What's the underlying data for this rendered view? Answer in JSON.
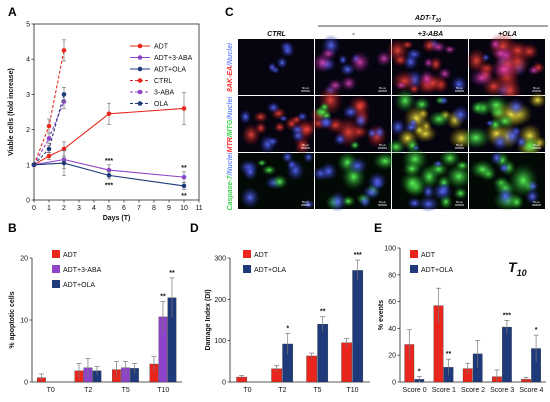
{
  "figure": {
    "panel_letters": [
      "A",
      "B",
      "C",
      "D",
      "E"
    ]
  },
  "chart_data": [
    {
      "panel": "A",
      "type": "line",
      "xlabel": "Days (T)",
      "ylabel": "Viable cells (fold increase)",
      "xlim": [
        0,
        11
      ],
      "ylim": [
        0,
        5
      ],
      "xticks": [
        "0",
        "1",
        "2",
        "3",
        "4",
        "5",
        "6",
        "7",
        "8",
        "9",
        "10",
        "11"
      ],
      "yticks": [
        "0",
        "1",
        "2",
        "3",
        "4",
        "5"
      ],
      "legend_position": "top-right",
      "series": [
        {
          "name": "ADT",
          "color": "#e8261d",
          "dashed": false,
          "x": [
            0,
            1,
            2,
            5,
            10
          ],
          "y": [
            1,
            1.25,
            1.45,
            2.45,
            2.6
          ],
          "err": [
            0,
            0.1,
            0.2,
            0.3,
            0.45
          ],
          "stars": [
            "",
            "",
            "",
            "",
            ""
          ]
        },
        {
          "name": "ADT+3-ABA",
          "color": "#8e44c8",
          "dashed": false,
          "x": [
            0,
            2,
            5,
            10
          ],
          "y": [
            1,
            1.15,
            0.85,
            0.65
          ],
          "err": [
            0,
            0.25,
            0.15,
            0.15
          ],
          "stars": [
            "",
            "",
            "***",
            "**"
          ]
        },
        {
          "name": "ADT+OLA",
          "color": "#1f3a7a",
          "dashed": false,
          "x": [
            0,
            2,
            5,
            10
          ],
          "y": [
            1,
            1.05,
            0.7,
            0.4
          ],
          "err": [
            0,
            0.35,
            0.1,
            0.1
          ],
          "stars": [
            "",
            "",
            "***",
            "**"
          ]
        },
        {
          "name": "CTRL",
          "color": "#e8261d",
          "dashed": true,
          "x": [
            0,
            1,
            2
          ],
          "y": [
            1,
            2.1,
            4.25
          ],
          "err": [
            0,
            0.2,
            0.3
          ],
          "stars": [
            "",
            "",
            ""
          ]
        },
        {
          "name": "3-ABA",
          "color": "#8e44c8",
          "dashed": true,
          "x": [
            0,
            1,
            2
          ],
          "y": [
            1,
            1.75,
            2.8
          ],
          "err": [
            0,
            0.15,
            0.2
          ],
          "stars": [
            "",
            "",
            ""
          ]
        },
        {
          "name": "OLA",
          "color": "#1f3a7a",
          "dashed": true,
          "x": [
            0,
            1,
            2
          ],
          "y": [
            1,
            1.45,
            3.0
          ],
          "err": [
            0,
            0.1,
            0.2
          ],
          "stars": [
            "",
            "",
            ""
          ]
        }
      ]
    },
    {
      "panel": "B",
      "type": "bar",
      "categories": [
        "T0",
        "T2",
        "T5",
        "T10"
      ],
      "ylabel": "% apoptotic cells",
      "ylim": [
        0,
        20
      ],
      "yticks": [
        "0",
        "10",
        "20"
      ],
      "legend_position": "top-left",
      "series": [
        {
          "name": "ADT",
          "color": "#e8261d",
          "values": [
            0.7,
            1.8,
            2.0,
            2.9
          ],
          "err": [
            0.6,
            1.2,
            1.3,
            1.2
          ],
          "stars": [
            "",
            "",
            "",
            ""
          ]
        },
        {
          "name": "ADT+3-ABA",
          "color": "#8e44c8",
          "values": [
            null,
            2.3,
            2.3,
            10.5
          ],
          "err": [
            0,
            1.5,
            1.0,
            2.5
          ],
          "stars": [
            "",
            "",
            "",
            "**"
          ]
        },
        {
          "name": "ADT+OLA",
          "color": "#1f3a7a",
          "values": [
            null,
            1.8,
            2.2,
            13.6
          ],
          "err": [
            0,
            0.7,
            0.8,
            3.2
          ],
          "stars": [
            "",
            "",
            "",
            "**"
          ]
        }
      ]
    },
    {
      "panel": "D",
      "type": "bar",
      "categories": [
        "T0",
        "T2",
        "T5",
        "T10"
      ],
      "ylabel": "Damage Index (DI)",
      "ylim": [
        0,
        300
      ],
      "yticks": [
        "0",
        "100",
        "200",
        "300"
      ],
      "legend_position": "top-left",
      "series": [
        {
          "name": "ADT",
          "color": "#e8261d",
          "values": [
            12,
            32,
            63,
            95
          ],
          "err": [
            4,
            8,
            7,
            10
          ],
          "stars": [
            "",
            "",
            "",
            ""
          ]
        },
        {
          "name": "ADT+OLA",
          "color": "#1f3a7a",
          "values": [
            null,
            92,
            140,
            270
          ],
          "err": [
            0,
            25,
            18,
            25
          ],
          "stars": [
            "",
            "*",
            "**",
            "***"
          ]
        }
      ]
    },
    {
      "panel": "E",
      "type": "bar",
      "categories": [
        "Score 0",
        "Score 1",
        "Score 2",
        "Score 3",
        "Score 4"
      ],
      "ylabel": "% events",
      "annotation": "T10",
      "ylim": [
        0,
        100
      ],
      "yticks": [
        "0",
        "20",
        "40",
        "60",
        "80",
        "100"
      ],
      "legend_position": "top-left",
      "series": [
        {
          "name": "ADT",
          "color": "#e8261d",
          "values": [
            28,
            57,
            10,
            4,
            2
          ],
          "err": [
            11,
            13,
            4,
            5,
            1.5
          ],
          "stars": [
            "",
            "",
            "",
            "",
            ""
          ]
        },
        {
          "name": "ADT+OLA",
          "color": "#1f3a7a",
          "values": [
            2,
            11,
            21,
            41,
            25
          ],
          "err": [
            2,
            6,
            10,
            5,
            10
          ],
          "stars": [
            "*",
            "**",
            "",
            "***",
            "*"
          ]
        }
      ]
    }
  ],
  "microscopy": {
    "group_title": "ADT-T",
    "group_title_sub": "10",
    "column_labels": [
      "CTRL",
      "-",
      "+3-ABA",
      "+OLA"
    ],
    "rows": [
      {
        "label_parts": [
          "8AK-EA",
          "/Nuclei"
        ],
        "label_colors": [
          "#ff3030",
          "#6f8bff"
        ]
      },
      {
        "label_parts": [
          "MTR",
          "/MTG",
          "/Nuclei"
        ],
        "label_colors": [
          "#ff3030",
          "#3cd34a",
          "#6f8bff"
        ]
      },
      {
        "label_parts": [
          "Caspase-",
          "7",
          "/Nuclei"
        ],
        "label_colors": [
          "#3cd34a",
          "#3cd34a",
          "#6f8bff"
        ]
      }
    ],
    "scale_label": "50 µm"
  }
}
